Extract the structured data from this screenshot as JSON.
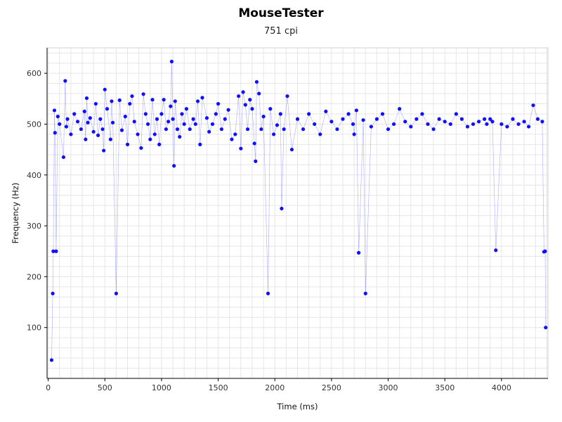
{
  "chart_data": {
    "type": "scatter",
    "title": "MouseTester",
    "subtitle": "751 cpi",
    "xlabel": "Time (ms)",
    "ylabel": "Frequency (Hz)",
    "xlim": [
      -10,
      4410
    ],
    "ylim": [
      0,
      650
    ],
    "xticks": [
      0,
      500,
      1000,
      1500,
      2000,
      2500,
      3000,
      3500,
      4000
    ],
    "yticks": [
      100,
      200,
      300,
      400,
      500,
      600
    ],
    "grid": true,
    "colors": {
      "series": "#1010ff",
      "axis": "#000000",
      "grid": "#e6e6e6"
    },
    "series": [
      {
        "kind": "points",
        "x": [
          30,
          40,
          45,
          55,
          60,
          70,
          85,
          100,
          135,
          150,
          160,
          170,
          200,
          230,
          260,
          290,
          320,
          330,
          340,
          350,
          370,
          400,
          420,
          440,
          460,
          480,
          490,
          500,
          520,
          550,
          560,
          570,
          600,
          630,
          650,
          680,
          700,
          720,
          740,
          760,
          790,
          820,
          840,
          860,
          880,
          900,
          920,
          940,
          960,
          980,
          1000,
          1020,
          1040,
          1060,
          1080,
          1090,
          1100,
          1110,
          1120,
          1140,
          1160,
          1180,
          1200,
          1220,
          1250,
          1280,
          1300,
          1320,
          1340,
          1360,
          1400,
          1420,
          1450,
          1480,
          1500,
          1530,
          1560,
          1590,
          1620,
          1650,
          1680,
          1700,
          1720,
          1740,
          1760,
          1780,
          1800,
          1820,
          1830,
          1840,
          1860,
          1880,
          1900,
          1940,
          1960,
          1990,
          2020,
          2050,
          2060,
          2080,
          2110,
          2150,
          2200,
          2250,
          2300,
          2350,
          2400,
          2450,
          2500,
          2550,
          2600,
          2650,
          2690,
          2700,
          2720,
          2740,
          2780,
          2800,
          2850,
          2900,
          2950,
          3000,
          3050,
          3100,
          3150,
          3200,
          3250,
          3300,
          3350,
          3400,
          3450,
          3500,
          3550,
          3600,
          3650,
          3700,
          3750,
          3800,
          3850,
          3870,
          3900,
          3920,
          3950,
          4000,
          4050,
          4100,
          4150,
          4200,
          4240,
          4280,
          4320,
          4360,
          4375,
          4385,
          4390
        ],
        "y": [
          36,
          167,
          250,
          527,
          483,
          250,
          515,
          500,
          435,
          585,
          495,
          510,
          480,
          520,
          505,
          490,
          525,
          470,
          551,
          503,
          512,
          485,
          540,
          478,
          510,
          490,
          448,
          568,
          530,
          470,
          545,
          503,
          167,
          547,
          488,
          515,
          460,
          540,
          555,
          505,
          480,
          453,
          559,
          520,
          500,
          470,
          548,
          480,
          510,
          460,
          520,
          548,
          490,
          505,
          535,
          623,
          510,
          418,
          545,
          490,
          475,
          520,
          500,
          530,
          490,
          510,
          500,
          545,
          460,
          552,
          512,
          485,
          500,
          520,
          540,
          490,
          510,
          528,
          470,
          480,
          555,
          452,
          563,
          538,
          490,
          548,
          530,
          462,
          427,
          583,
          560,
          490,
          515,
          167,
          530,
          480,
          498,
          520,
          334,
          490,
          555,
          450,
          510,
          490,
          520,
          500,
          480,
          525,
          505,
          490,
          510,
          520,
          500,
          480,
          527,
          247,
          508,
          167,
          495,
          510,
          520,
          490,
          500,
          530,
          505,
          495,
          510,
          520,
          500,
          490,
          510,
          505,
          500,
          520,
          510,
          495,
          500,
          505,
          510,
          500,
          510,
          505,
          252,
          500,
          495,
          510,
          500,
          505,
          495,
          537,
          510,
          505,
          249,
          250,
          100
        ]
      }
    ]
  }
}
